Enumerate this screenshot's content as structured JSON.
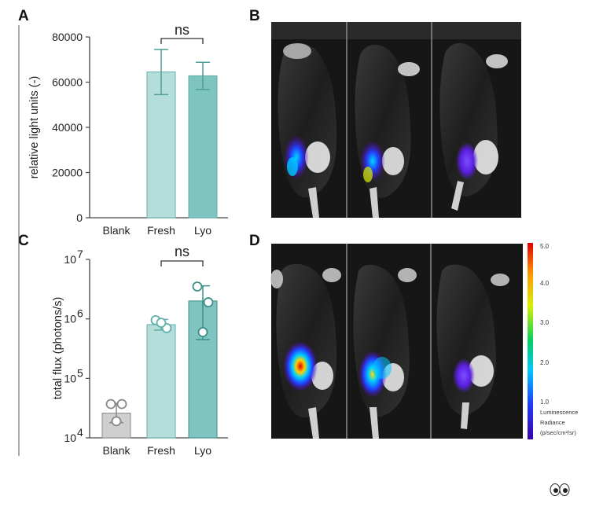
{
  "panels": {
    "a": "A",
    "b": "B",
    "c": "C",
    "d": "D"
  },
  "chart_data": [
    {
      "panel": "A",
      "type": "bar",
      "categories": [
        "Blank",
        "Fresh",
        "Lyo"
      ],
      "values": [
        0,
        64500,
        62800
      ],
      "errors": [
        0,
        10000,
        6000
      ],
      "ylabel": "relative light units (-)",
      "yticks": [
        "0",
        "20000",
        "40000",
        "60000",
        "80000"
      ],
      "ylim": [
        0,
        80000
      ],
      "yscale": "linear",
      "bar_colors": [
        "#cfe8e6",
        "#b5dedb",
        "#7fc4c0"
      ],
      "bracket": {
        "from": "Fresh",
        "to": "Lyo",
        "label": "ns"
      }
    },
    {
      "panel": "C",
      "type": "bar",
      "categories": [
        "Blank",
        "Fresh",
        "Lyo"
      ],
      "values": [
        26000,
        800000,
        2000000
      ],
      "errors_low": [
        18000,
        650000,
        450000
      ],
      "errors_high": [
        38000,
        980000,
        3600000
      ],
      "points": [
        [
          37000,
          37000,
          19000
        ],
        [
          950000,
          700000,
          860000
        ],
        [
          3500000,
          1900000,
          600000
        ]
      ],
      "ylabel": "total flux (photons/s)",
      "ytick_base": "10",
      "ytick_exponents": [
        "4",
        "5",
        "6",
        "7"
      ],
      "ylim": [
        10000,
        10000000
      ],
      "yscale": "log",
      "bar_colors": [
        "#cfcfcf",
        "#b5dedb",
        "#7fc4c0"
      ],
      "bracket": {
        "from": "Fresh",
        "to": "Lyo",
        "label": "ns"
      }
    }
  ],
  "colorbar": {
    "ticks": [
      "5.0",
      "4.0",
      "3.0",
      "2.0",
      "1.0"
    ],
    "caption": [
      "Luminescence",
      "Radiance",
      "(p/sec/cm²/sr)"
    ]
  },
  "icons": {
    "corner": "eyes-icon"
  }
}
